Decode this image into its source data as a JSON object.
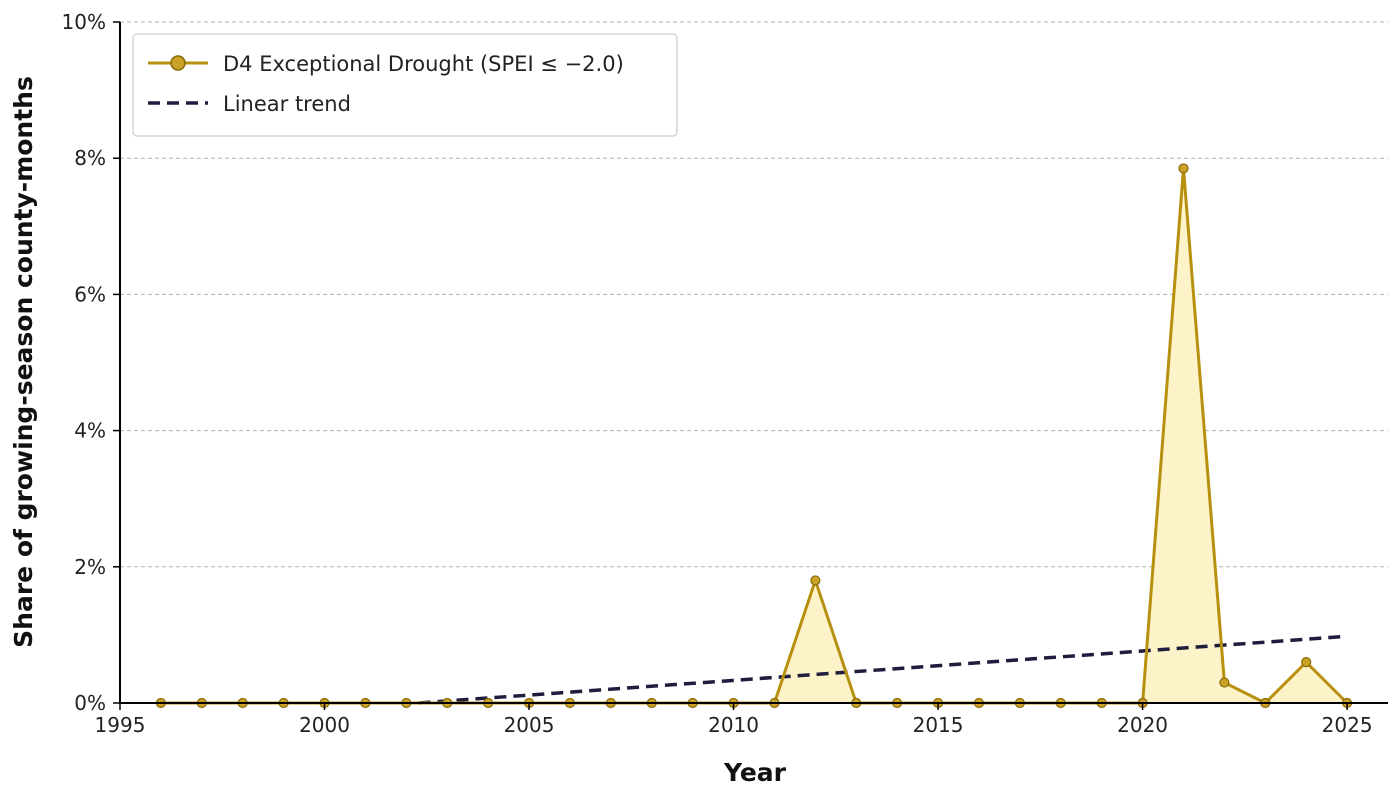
{
  "chart_data": {
    "type": "line",
    "title": "",
    "xlabel": "Year",
    "ylabel": "Share of growing-season county-months",
    "xlim": [
      1995,
      2026
    ],
    "ylim": [
      0,
      10
    ],
    "xticks": [
      1995,
      2000,
      2005,
      2010,
      2015,
      2020,
      2025
    ],
    "xtick_labels": [
      "1995",
      "2000",
      "2005",
      "2010",
      "2015",
      "2020",
      "2025"
    ],
    "yticks": [
      0,
      2,
      4,
      6,
      8,
      10
    ],
    "ytick_labels": [
      "0%",
      "2%",
      "4%",
      "6%",
      "8%",
      "10%"
    ],
    "grid": "horizontal dashed",
    "legend_position": "top-left",
    "series": [
      {
        "name": "D4 Exceptional Drought (SPEI ≤ −2.0)",
        "style": "line with circle markers, area fill",
        "x": [
          1996,
          1997,
          1998,
          1999,
          2000,
          2001,
          2002,
          2003,
          2004,
          2005,
          2006,
          2007,
          2008,
          2009,
          2010,
          2011,
          2012,
          2013,
          2014,
          2015,
          2016,
          2017,
          2018,
          2019,
          2020,
          2021,
          2022,
          2023,
          2024,
          2025
        ],
        "values": [
          0,
          0,
          0,
          0,
          0,
          0,
          0,
          0,
          0,
          0,
          0,
          0,
          0,
          0,
          0,
          0,
          1.8,
          0,
          0,
          0,
          0,
          0,
          0,
          0,
          0,
          7.85,
          0.3,
          0,
          0.6,
          0
        ]
      },
      {
        "name": "Linear trend",
        "style": "dashed line",
        "x": [
          2002.3,
          2025
        ],
        "values": [
          0,
          0.98
        ]
      }
    ],
    "colors": {
      "series_line": "#b8900f",
      "marker_fill": "#c9a227",
      "area_fill": "#fdf3c8",
      "trend": "#1f1d3d",
      "grid": "#b0b0b0",
      "axis": "#000000"
    }
  }
}
